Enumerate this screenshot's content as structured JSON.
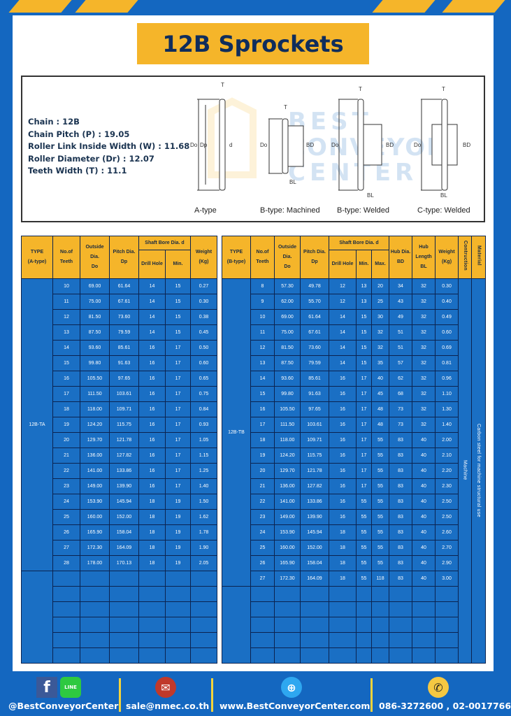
{
  "title": "12B Sprockets",
  "specs": [
    "Chain : 12B",
    "Chain Pitch (P) : 19.05",
    "Roller Link Inside Width (W) : 11.68",
    "Roller Diameter (Dr) : 12.07",
    "Teeth Width (T) : 11.1"
  ],
  "diagram": {
    "captions": [
      "A-type",
      "B-type: Machined",
      "B-type: Welded",
      "C-type: Welded"
    ],
    "labels": {
      "T": "T",
      "Do": "Do",
      "Dp": "Dp",
      "d": "d",
      "BD": "BD",
      "BL": "BL"
    },
    "watermark": "BEST CONVEYOR CENTER"
  },
  "table_a": {
    "headers": {
      "type": "TYPE",
      "type_sub": "(A-type)",
      "teeth": "No.of",
      "teeth_sub": "Teeth",
      "do": "Outside",
      "do_sub": "Dia.",
      "do_sub2": "Do",
      "dp": "Pitch Dia.",
      "dp_sub": "Dp",
      "bore": "Shaft Bore Dia. d",
      "drill": "Drill Hole",
      "min": "Min.",
      "weight": "Weight",
      "weight_sub": "(Kg)"
    },
    "type_value": "12B-TA",
    "rows": [
      [
        "10",
        "69.00",
        "61.64",
        "14",
        "15",
        "0.27"
      ],
      [
        "11",
        "75.00",
        "67.61",
        "14",
        "15",
        "0.30"
      ],
      [
        "12",
        "81.50",
        "73.60",
        "14",
        "15",
        "0.38"
      ],
      [
        "13",
        "87.50",
        "79.59",
        "14",
        "15",
        "0.45"
      ],
      [
        "14",
        "93.60",
        "85.61",
        "16",
        "17",
        "0.50"
      ],
      [
        "15",
        "99.80",
        "91.63",
        "16",
        "17",
        "0.60"
      ],
      [
        "16",
        "105.50",
        "97.65",
        "16",
        "17",
        "0.65"
      ],
      [
        "17",
        "111.50",
        "103.61",
        "16",
        "17",
        "0.75"
      ],
      [
        "18",
        "118.00",
        "109.71",
        "16",
        "17",
        "0.84"
      ],
      [
        "19",
        "124.20",
        "115.75",
        "16",
        "17",
        "0.93"
      ],
      [
        "20",
        "129.70",
        "121.78",
        "16",
        "17",
        "1.05"
      ],
      [
        "21",
        "136.00",
        "127.82",
        "16",
        "17",
        "1.15"
      ],
      [
        "22",
        "141.00",
        "133.86",
        "16",
        "17",
        "1.25"
      ],
      [
        "23",
        "149.00",
        "139.90",
        "16",
        "17",
        "1.40"
      ],
      [
        "24",
        "153.90",
        "145.94",
        "18",
        "19",
        "1.50"
      ],
      [
        "25",
        "160.00",
        "152.00",
        "18",
        "19",
        "1.62"
      ],
      [
        "26",
        "165.90",
        "158.04",
        "18",
        "19",
        "1.78"
      ],
      [
        "27",
        "172.30",
        "164.09",
        "18",
        "19",
        "1.90"
      ],
      [
        "28",
        "178.00",
        "170.13",
        "18",
        "19",
        "2.05"
      ]
    ]
  },
  "table_b": {
    "headers": {
      "type": "TYPE",
      "type_sub": "(B-type)",
      "teeth": "No.of",
      "teeth_sub": "Teeth",
      "do": "Outside",
      "do_sub": "Dia.",
      "do_sub2": "Do",
      "dp": "Pitch Dia.",
      "dp_sub": "Dp",
      "bore": "Shaft Bore Dia. d",
      "drill": "Drill Hole",
      "min": "Min.",
      "max": "Max.",
      "bd": "Hub Dia.",
      "bd_sub": "BD",
      "bl": "Hub",
      "bl_sub": "Length",
      "bl_sub2": "BL",
      "weight": "Weight",
      "weight_sub": "(Kg)",
      "construction": "Contruction",
      "material": "Material"
    },
    "type_value": "12B-TB",
    "construction_value": "Machine",
    "material_value": "Carbon steel for machine structural use",
    "rows": [
      [
        "8",
        "57.30",
        "49.78",
        "12",
        "13",
        "20",
        "34",
        "32",
        "0.30"
      ],
      [
        "9",
        "62.00",
        "55.70",
        "12",
        "13",
        "25",
        "43",
        "32",
        "0.40"
      ],
      [
        "10",
        "69.00",
        "61.64",
        "14",
        "15",
        "30",
        "49",
        "32",
        "0.49"
      ],
      [
        "11",
        "75.00",
        "67.61",
        "14",
        "15",
        "32",
        "51",
        "32",
        "0.60"
      ],
      [
        "12",
        "81.50",
        "73.60",
        "14",
        "15",
        "32",
        "51",
        "32",
        "0.69"
      ],
      [
        "13",
        "87.50",
        "79.59",
        "14",
        "15",
        "35",
        "57",
        "32",
        "0.81"
      ],
      [
        "14",
        "93.60",
        "85.61",
        "16",
        "17",
        "40",
        "62",
        "32",
        "0.96"
      ],
      [
        "15",
        "99.80",
        "91.63",
        "16",
        "17",
        "45",
        "68",
        "32",
        "1.10"
      ],
      [
        "16",
        "105.50",
        "97.65",
        "16",
        "17",
        "48",
        "73",
        "32",
        "1.30"
      ],
      [
        "17",
        "111.50",
        "103.61",
        "16",
        "17",
        "48",
        "73",
        "32",
        "1.40"
      ],
      [
        "18",
        "118.00",
        "109.71",
        "16",
        "17",
        "55",
        "83",
        "40",
        "2.00"
      ],
      [
        "19",
        "124.20",
        "115.75",
        "16",
        "17",
        "55",
        "83",
        "40",
        "2.10"
      ],
      [
        "20",
        "129.70",
        "121.78",
        "16",
        "17",
        "55",
        "83",
        "40",
        "2.20"
      ],
      [
        "21",
        "136.00",
        "127.82",
        "16",
        "17",
        "55",
        "83",
        "40",
        "2.30"
      ],
      [
        "22",
        "141.00",
        "133.86",
        "16",
        "55",
        "55",
        "83",
        "40",
        "2.50"
      ],
      [
        "23",
        "149.00",
        "139.90",
        "16",
        "55",
        "55",
        "83",
        "40",
        "2.50"
      ],
      [
        "24",
        "153.90",
        "145.94",
        "18",
        "55",
        "55",
        "83",
        "40",
        "2.60"
      ],
      [
        "25",
        "160.00",
        "152.00",
        "18",
        "55",
        "55",
        "83",
        "40",
        "2.70"
      ],
      [
        "26",
        "165.90",
        "158.04",
        "18",
        "55",
        "55",
        "83",
        "40",
        "2.90"
      ],
      [
        "27",
        "172.30",
        "164.09",
        "18",
        "55",
        "118",
        "83",
        "40",
        "3.00"
      ]
    ]
  },
  "footer": {
    "social": "@BestConveyorCenter",
    "line_icon_text": "LINE",
    "email": "sale@nmec.co.th",
    "website": "www.BestConveyorCenter.com",
    "phone": "086-3272600 , 02-0017766"
  },
  "colors": {
    "blue": "#1467c0",
    "yellow": "#f5b52a",
    "navy": "#0f2d5c"
  }
}
